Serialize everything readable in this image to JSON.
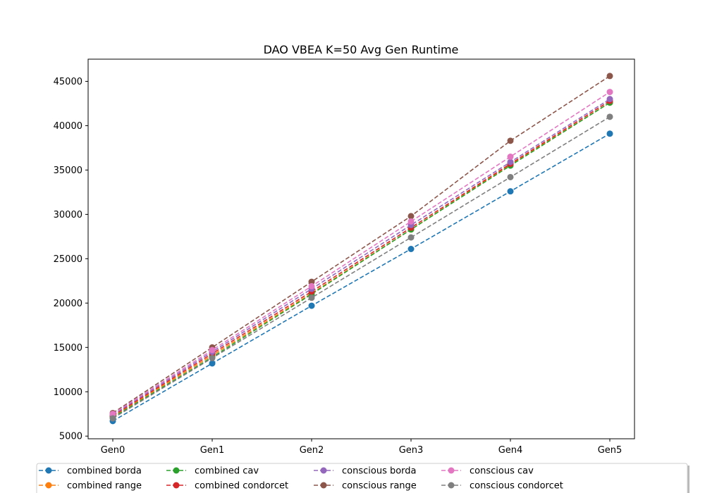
{
  "chart_data": {
    "type": "line",
    "title": "DAO VBEA K=50 Avg Gen Runtime",
    "categories": [
      "Gen0",
      "Gen1",
      "Gen2",
      "Gen3",
      "Gen4",
      "Gen5"
    ],
    "xlabel": "",
    "ylabel": "",
    "ylim": [
      4700,
      47500
    ],
    "yticks": [
      5000,
      10000,
      15000,
      20000,
      25000,
      30000,
      35000,
      40000,
      45000
    ],
    "grid": false,
    "line_style": "dashed",
    "marker": "circle",
    "legend_position": "bottom",
    "series": [
      {
        "name": "combined borda",
        "color": "#1f77b4",
        "values": [
          6700,
          13200,
          19700,
          26100,
          32600,
          39100
        ]
      },
      {
        "name": "combined range",
        "color": "#ff7f0e",
        "values": [
          7200,
          14100,
          21100,
          28300,
          35600,
          42600
        ]
      },
      {
        "name": "combined cav",
        "color": "#2ca02c",
        "values": [
          7100,
          13900,
          21000,
          28300,
          35500,
          42600
        ]
      },
      {
        "name": "combined condorcet",
        "color": "#d62728",
        "values": [
          7300,
          14300,
          21300,
          28500,
          35700,
          42800
        ]
      },
      {
        "name": "conscious borda",
        "color": "#9467bd",
        "values": [
          7400,
          14500,
          21600,
          28800,
          35900,
          43000
        ]
      },
      {
        "name": "conscious range",
        "color": "#8c564b",
        "values": [
          7600,
          15000,
          22400,
          29800,
          38300,
          45600
        ]
      },
      {
        "name": "conscious cav",
        "color": "#e377c2",
        "values": [
          7500,
          14700,
          21900,
          29200,
          36500,
          43800
        ]
      },
      {
        "name": "conscious condorcet",
        "color": "#7f7f7f",
        "values": [
          7000,
          13800,
          20600,
          27400,
          34200,
          41000
        ]
      }
    ]
  }
}
